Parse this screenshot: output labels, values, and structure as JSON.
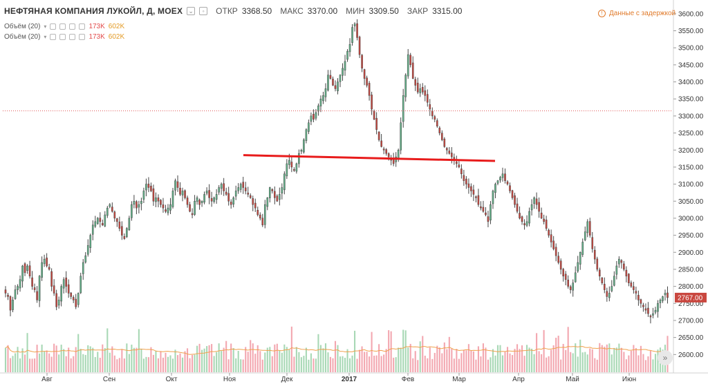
{
  "header": {
    "title": "НЕФТЯНАЯ КОМПАНИЯ ЛУКОЙЛ, Д, MOEX",
    "open_label": "ОТКР",
    "open_value": "3368.50",
    "high_label": "МАКС",
    "high_value": "3370.00",
    "low_label": "МИН",
    "low_value": "3309.50",
    "close_label": "ЗАКР",
    "close_value": "3315.00"
  },
  "studies": [
    {
      "name": "Объём (20)",
      "value1": "173K",
      "value2": "602K"
    },
    {
      "name": "Объём (20)",
      "value1": "173K",
      "value2": "602K"
    }
  ],
  "delay_notice": "Данные с задержкой",
  "last_price_label": "2767.00",
  "colors": {
    "up": "#63b38a",
    "down": "#c9473f",
    "last_price_bg": "#c9473f",
    "trendline": "#e81b1b",
    "volume_ma": "#f0a04b"
  },
  "chart_data": {
    "type": "candlestick",
    "symbol": "НЕФТЯНАЯ КОМПАНИЯ ЛУКОЙЛ, Д, MOEX",
    "ylim": [
      2550,
      3620
    ],
    "yticks": [
      2600,
      2650,
      2700,
      2750,
      2800,
      2850,
      2900,
      2950,
      3000,
      3050,
      3100,
      3150,
      3200,
      3250,
      3300,
      3350,
      3400,
      3450,
      3500,
      3550,
      3600
    ],
    "xtick_labels": [
      "Авг",
      "Сен",
      "Окт",
      "Ноя",
      "Дек",
      "2017",
      "Фев",
      "Мар",
      "Апр",
      "Май",
      "Июн"
    ],
    "price_close": [
      2780,
      2770,
      2730,
      2760,
      2790,
      2800,
      2820,
      2860,
      2840,
      2860,
      2830,
      2800,
      2790,
      2760,
      2830,
      2870,
      2880,
      2860,
      2850,
      2800,
      2780,
      2740,
      2760,
      2800,
      2820,
      2800,
      2780,
      2770,
      2760,
      2740,
      2780,
      2830,
      2870,
      2890,
      2920,
      2950,
      2980,
      2990,
      3000,
      2990,
      2980,
      3010,
      3030,
      3040,
      3020,
      3000,
      2990,
      2970,
      2950,
      2940,
      2970,
      3000,
      3040,
      3050,
      3030,
      3040,
      3050,
      3080,
      3100,
      3090,
      3080,
      3050,
      3060,
      3050,
      3040,
      3030,
      3020,
      3030,
      3040,
      3080,
      3110,
      3090,
      3070,
      3080,
      3060,
      3040,
      3020,
      3010,
      3050,
      3060,
      3040,
      3050,
      3070,
      3080,
      3060,
      3050,
      3060,
      3070,
      3090,
      3100,
      3080,
      3070,
      3050,
      3040,
      3060,
      3080,
      3090,
      3100,
      3090,
      3080,
      3070,
      3060,
      3040,
      3030,
      3010,
      3000,
      2980,
      3040,
      3060,
      3090,
      3080,
      3060,
      3050,
      3070,
      3090,
      3130,
      3160,
      3170,
      3150,
      3140,
      3160,
      3190,
      3200,
      3230,
      3260,
      3280,
      3300,
      3290,
      3310,
      3330,
      3350,
      3360,
      3380,
      3420,
      3410,
      3390,
      3380,
      3400,
      3420,
      3440,
      3460,
      3490,
      3510,
      3560,
      3570,
      3530,
      3480,
      3440,
      3410,
      3390,
      3360,
      3320,
      3290,
      3260,
      3230,
      3210,
      3200,
      3190,
      3180,
      3170,
      3160,
      3180,
      3200,
      3280,
      3360,
      3420,
      3480,
      3450,
      3410,
      3390,
      3370,
      3380,
      3370,
      3360,
      3340,
      3320,
      3300,
      3290,
      3270,
      3250,
      3230,
      3210,
      3200,
      3190,
      3180,
      3170,
      3160,
      3150,
      3130,
      3110,
      3100,
      3090,
      3080,
      3070,
      3060,
      3040,
      3030,
      3020,
      3010,
      2990,
      3040,
      3080,
      3100,
      3110,
      3120,
      3130,
      3110,
      3100,
      3080,
      3060,
      3040,
      3020,
      3000,
      2990,
      2980,
      2990,
      3020,
      3040,
      3060,
      3040,
      3020,
      3000,
      2990,
      2970,
      2950,
      2930,
      2910,
      2890,
      2870,
      2850,
      2830,
      2820,
      2800,
      2790,
      2810,
      2840,
      2870,
      2900,
      2930,
      2960,
      2990,
      2950,
      2910,
      2880,
      2850,
      2830,
      2810,
      2790,
      2770,
      2780,
      2800,
      2830,
      2860,
      2880,
      2870,
      2850,
      2830,
      2810,
      2800,
      2790,
      2780,
      2760,
      2750,
      2740,
      2730,
      2720,
      2710,
      2720,
      2730,
      2750,
      2760,
      2770,
      2780,
      2767
    ],
    "volume_ma_label": "Объём (20)"
  }
}
